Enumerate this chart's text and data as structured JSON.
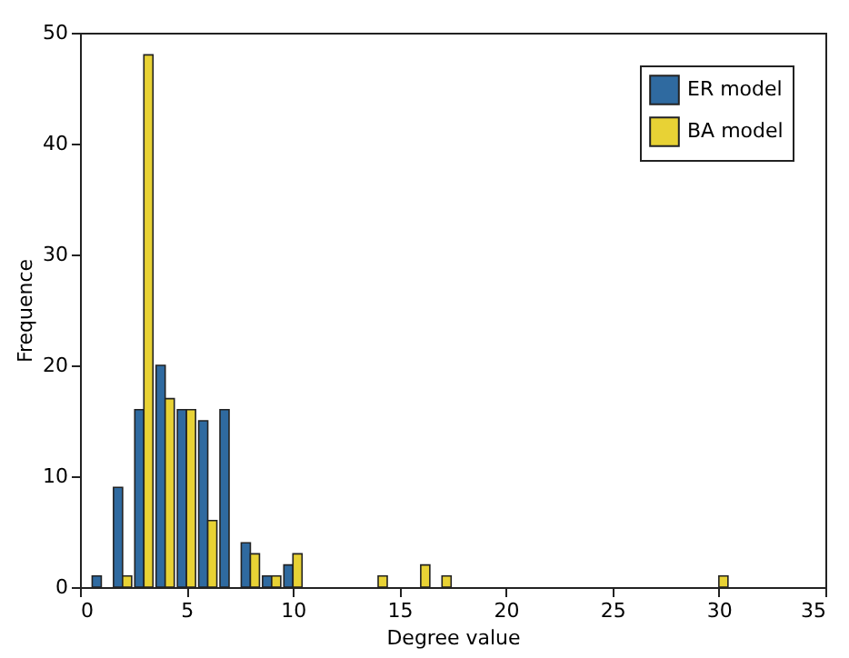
{
  "chart_data": {
    "type": "bar",
    "xlabel": "Degree value",
    "ylabel": "Frequence",
    "xlim": [
      0,
      35
    ],
    "xticks": [
      0,
      5,
      10,
      15,
      20,
      25,
      30,
      35
    ],
    "ylim": [
      0,
      50
    ],
    "yticks": [
      0,
      10,
      20,
      30,
      40,
      50
    ],
    "series": [
      {
        "name": "ER model",
        "color": "#2f6aa0",
        "x": [
          1,
          2,
          3,
          4,
          5,
          6,
          7,
          8,
          9,
          10
        ],
        "values": [
          1,
          9,
          16,
          20,
          16,
          15,
          16,
          4,
          1,
          2
        ]
      },
      {
        "name": "BA model",
        "color": "#e8d235",
        "x": [
          2,
          3,
          4,
          5,
          6,
          8,
          9,
          10,
          14,
          16,
          17,
          30
        ],
        "values": [
          1,
          48,
          17,
          16,
          6,
          3,
          1,
          3,
          1,
          2,
          1,
          1
        ]
      }
    ],
    "legend": "top right",
    "grid": false
  }
}
